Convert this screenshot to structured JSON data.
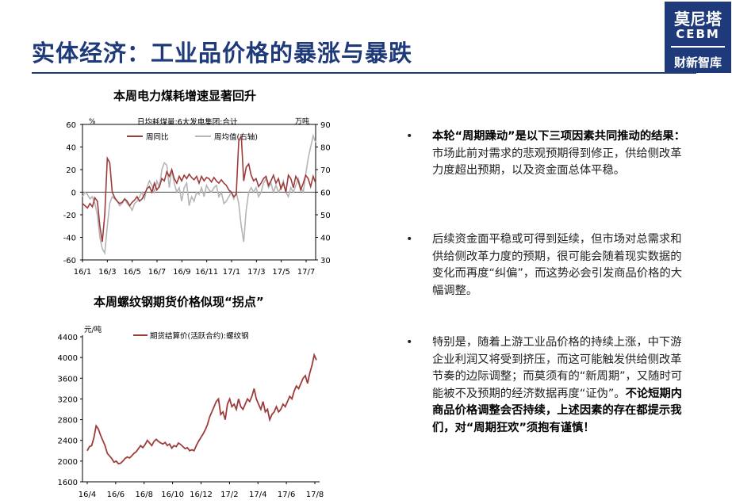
{
  "header": {
    "title": "实体经济：工业品价格的暴涨与暴跌",
    "logo": {
      "line1": "莫尼塔",
      "line2": "CEBM",
      "line3": "财新智库"
    }
  },
  "chart1": {
    "title": "本周电力煤耗增速显著回升",
    "inner_title": "日均耗煤量:6大发电集团:合计",
    "left_unit": "%",
    "right_unit": "万吨",
    "legend": [
      "周同比",
      "周均值(右轴)"
    ],
    "left_ticks": [
      "60",
      "40",
      "20",
      "0",
      "-20",
      "-40",
      "-60"
    ],
    "right_ticks": [
      "90",
      "80",
      "70",
      "60",
      "50",
      "40",
      "30"
    ],
    "x_ticks": [
      "16/1",
      "16/3",
      "16/5",
      "16/7",
      "16/9",
      "16/11",
      "17/1",
      "17/3",
      "17/5",
      "17/7"
    ]
  },
  "chart2": {
    "title": "本周螺纹钢期货价格似现“拐点”",
    "unit": "元/吨",
    "legend": "期货结算价(活跃合约):螺纹钢",
    "y_ticks": [
      "4400",
      "4000",
      "3600",
      "3200",
      "2800",
      "2400",
      "2000",
      "1600"
    ],
    "x_ticks": [
      "16/4",
      "16/6",
      "16/8",
      "16/10",
      "16/12",
      "17/2",
      "17/4",
      "17/6",
      "17/8"
    ]
  },
  "chart_data": [
    {
      "type": "line",
      "title": "本周电力煤耗增速显著回升",
      "ylim": [
        -60,
        60
      ],
      "y2lim": [
        30,
        90
      ],
      "series": [
        {
          "name": "周同比",
          "axis": "left",
          "color": "#9e3b3b",
          "values": [
            -10,
            -12,
            -14,
            -10,
            -13,
            -5,
            -8,
            -30,
            -44,
            -20,
            30,
            26,
            0,
            -5,
            -8,
            -10,
            -9,
            -6,
            -8,
            -12,
            -9,
            -7,
            -4,
            -8,
            -6,
            -2,
            3,
            5,
            0,
            8,
            2,
            5,
            12,
            10,
            18,
            14,
            20,
            12,
            8,
            14,
            10,
            15,
            12,
            16,
            13,
            11,
            14,
            8,
            14,
            10,
            13,
            12,
            9,
            13,
            10,
            8,
            11,
            8,
            6,
            2,
            0,
            -4,
            -2,
            45,
            50,
            10,
            22,
            25,
            15,
            10,
            12,
            5,
            8,
            12,
            14,
            6,
            10,
            15,
            8,
            12,
            3,
            8,
            0,
            15,
            12,
            4,
            14,
            10,
            2,
            8,
            15,
            12,
            5,
            14,
            8
          ]
        },
        {
          "name": "周均值(右轴)",
          "axis": "right",
          "color": "#b5b5b5",
          "values": [
            58,
            60,
            59,
            57,
            58,
            55,
            50,
            40,
            35,
            33,
            45,
            55,
            58,
            57,
            56,
            54,
            55,
            57,
            55,
            54,
            52,
            55,
            56,
            58,
            60,
            57,
            62,
            65,
            63,
            60,
            65,
            62,
            70,
            73,
            72,
            62,
            70,
            64,
            60,
            62,
            56,
            62,
            64,
            54,
            58,
            56,
            60,
            59,
            62,
            58,
            63,
            61,
            60,
            62,
            63,
            58,
            60,
            55,
            56,
            58,
            60,
            57,
            60,
            55,
            45,
            38,
            52,
            60,
            62,
            60,
            62,
            58,
            60,
            64,
            66,
            62,
            64,
            60,
            63,
            60,
            62,
            65,
            60,
            58,
            62,
            60,
            63,
            66,
            62,
            60,
            68,
            75,
            80,
            85,
            82
          ]
        }
      ]
    },
    {
      "type": "line",
      "title": "本周螺纹钢期货价格似现“拐点”",
      "ylim": [
        1600,
        4400
      ],
      "series": [
        {
          "name": "期货结算价(活跃合约):螺纹钢",
          "color": "#9e3b3b",
          "values": [
            2200,
            2280,
            2300,
            2450,
            2680,
            2620,
            2500,
            2400,
            2300,
            2150,
            2100,
            2050,
            1980,
            2000,
            1950,
            1960,
            2000,
            2050,
            2080,
            2060,
            2100,
            2150,
            2180,
            2240,
            2300,
            2260,
            2320,
            2400,
            2350,
            2300,
            2380,
            2420,
            2380,
            2350,
            2330,
            2360,
            2300,
            2330,
            2250,
            2300,
            2280,
            2350,
            2320,
            2280,
            2240,
            2260,
            2200,
            2220,
            2200,
            2300,
            2380,
            2450,
            2520,
            2600,
            2700,
            2850,
            2950,
            3050,
            3150,
            3200,
            2900,
            2950,
            2800,
            3100,
            3200,
            3050,
            3100,
            3000,
            3200,
            3050,
            3000,
            3100,
            3200,
            3150,
            3250,
            3400,
            3200,
            3100,
            3000,
            3150,
            2950,
            3000,
            2800,
            2900,
            2950,
            3050,
            2950,
            3000,
            3100,
            3050,
            3150,
            3250,
            3200,
            3350,
            3450,
            3400,
            3500,
            3600,
            3650,
            3500,
            3700,
            3850,
            4050,
            3950
          ]
        }
      ]
    }
  ],
  "bullets": [
    {
      "bold": "本轮“周期躁动”是以下三项因素共同推动的结果：",
      "text": "市场此前对需求的悲观预期得到修正，供给侧改革力度超出预期，以及资金面总体平稳。",
      "tail_bold": ""
    },
    {
      "bold": "",
      "text": "后续资金面平稳或可得到延续，但市场对总需求和供给侧改革力度的预期，很可能会随着现实数据的变化而再度“纠偏”，而这势必会引发商品价格的大幅调整。",
      "tail_bold": ""
    },
    {
      "bold": "",
      "text": "特别是，随着上游工业品价格的持续上涨，中下游企业利润又将受到挤压，而这可能触发供给侧改革节奏的边际调整；而莫须有的“新周期”，又随时可能被不及预期的经济数据再度“证伪”。",
      "tail_bold": "不论短期内商品价格调整会否持续，上述因素的存在都提示我们，对“周期狂欢”须抱有谨慎！"
    }
  ]
}
